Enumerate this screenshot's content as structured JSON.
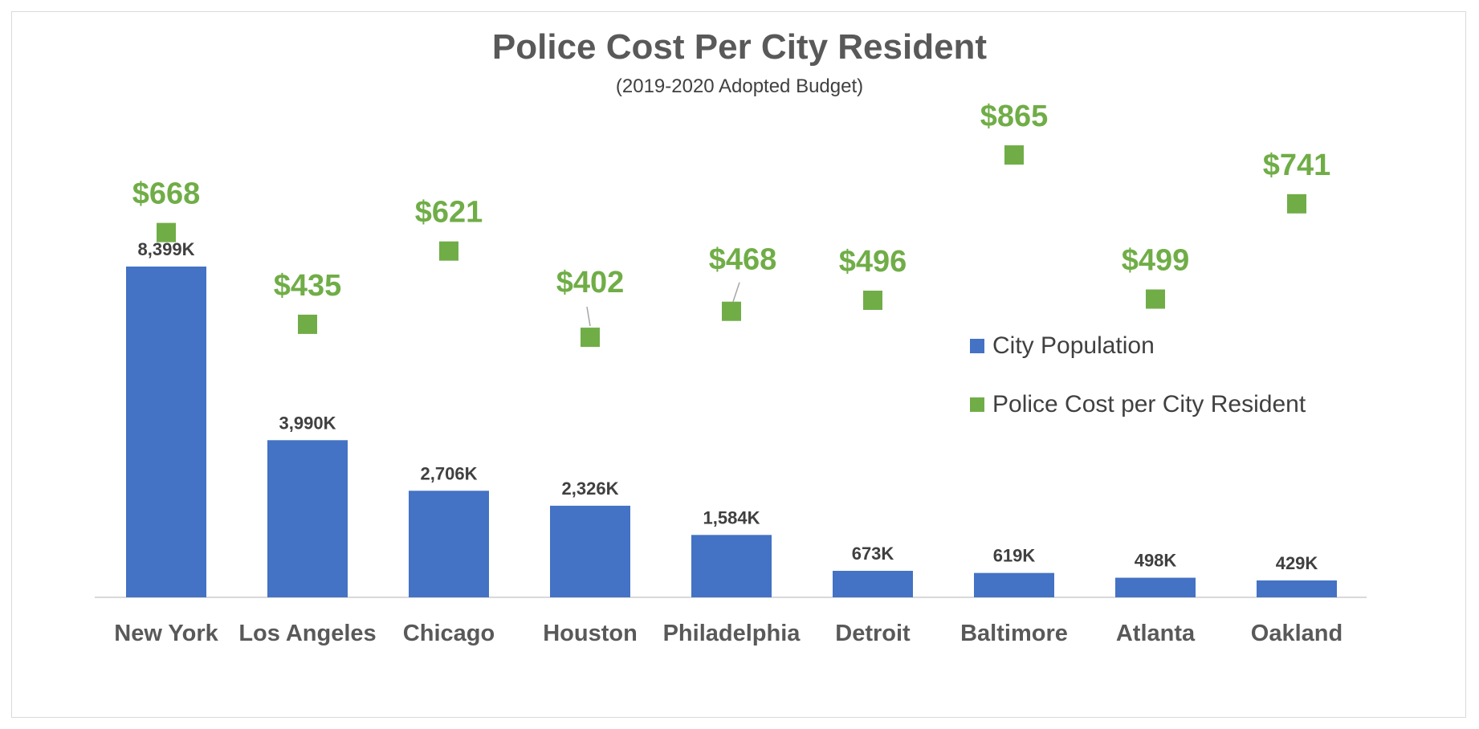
{
  "chart_data": {
    "type": "bar",
    "title": "Police Cost Per City Resident",
    "subtitle": "(2019-2020 Adopted Budget)",
    "categories": [
      "New York",
      "Los Angeles",
      "Chicago",
      "Houston",
      "Philadelphia",
      "Detroit",
      "Baltimore",
      "Atlanta",
      "Oakland"
    ],
    "series": [
      {
        "name": "City Population",
        "type": "bar",
        "unit": "thousands",
        "color": "#4472C4",
        "values": [
          8399,
          3990,
          2706,
          2326,
          1584,
          673,
          619,
          498,
          429
        ],
        "labels": [
          "8,399K",
          "3,990K",
          "2,706K",
          "2,326K",
          "1,584K",
          "673K",
          "619K",
          "498K",
          "429K"
        ]
      },
      {
        "name": "Police Cost per City Resident",
        "type": "scatter-square",
        "unit": "USD",
        "color": "#70AD47",
        "values": [
          668,
          435,
          621,
          402,
          468,
          496,
          865,
          499,
          741
        ],
        "labels": [
          "$668",
          "$435",
          "$621",
          "$402",
          "$468",
          "$496",
          "$865",
          "$499",
          "$741"
        ]
      }
    ],
    "xlabel": "",
    "ylabel": "",
    "grid": false,
    "legend_position": "right"
  }
}
